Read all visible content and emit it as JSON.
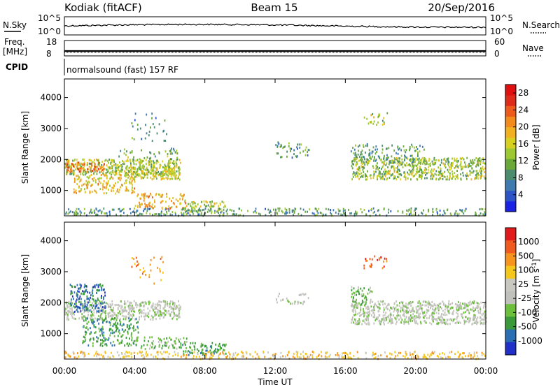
{
  "header": {
    "station": "Kodiak (fitACF)",
    "beam": "Beam 15",
    "date": "20/Sep/2016"
  },
  "strip_labels": {
    "nsky": "N.Sky",
    "nsky_ticks": [
      "10^5",
      "10^0"
    ],
    "nsearch": "N.Search",
    "nsearch_ticks": [
      "10^5",
      "10^0"
    ],
    "freq_line1": "Freq.",
    "freq_line2": "[MHz]",
    "freq_ticks": [
      "18",
      "8"
    ],
    "nave": "Nave",
    "nave_ticks": [
      "60",
      "0"
    ],
    "cpid": "CPID",
    "cpid_text": "normalsound (fast) 157 RF"
  },
  "x_axis": {
    "label": "Time UT",
    "ticks": [
      "00:00",
      "04:00",
      "08:00",
      "12:00",
      "16:00",
      "20:00",
      "00:00"
    ],
    "range_hours": [
      0,
      24
    ]
  },
  "colors": {
    "power": [
      "#1a22e6",
      "#2d55c8",
      "#3f7ab0",
      "#4b8c6e",
      "#6aa83a",
      "#9cc832",
      "#d8d020",
      "#f0b020",
      "#f28a1c",
      "#ee5a1c",
      "#e02a1a",
      "#e01010"
    ],
    "velocity": [
      "#e31a1c",
      "#f05a1e",
      "#f7941d",
      "#f6c71b",
      "#c8c8c0",
      "#c0c0bc",
      "#6cbf3a",
      "#3a9a3a",
      "#2a6fb4",
      "#2030c8"
    ]
  },
  "chart_data": [
    {
      "type": "heatmap",
      "name": "power-panel",
      "ylabel": "Slant Range [km]",
      "yticks": [
        "1000",
        "2000",
        "3000",
        "4000"
      ],
      "ylim": [
        180,
        4600
      ],
      "xlim_hours": [
        0,
        24
      ],
      "colorbar": {
        "label": "Power [dB]",
        "ticks": [
          "4",
          "8",
          "12",
          "16",
          "20",
          "24",
          "28"
        ],
        "range": [
          0,
          30
        ]
      },
      "scatter_regions": [
        {
          "t0": 0.0,
          "t1": 6.6,
          "r0": 1500,
          "r1": 2000,
          "level": 14,
          "density": 0.85
        },
        {
          "t0": 0.1,
          "t1": 2.3,
          "r0": 1600,
          "r1": 1900,
          "level": 22,
          "density": 0.8
        },
        {
          "t0": 0.5,
          "t1": 4.0,
          "r0": 900,
          "r1": 1500,
          "level": 18,
          "density": 0.55
        },
        {
          "t0": 3.5,
          "t1": 6.6,
          "r0": 1350,
          "r1": 1750,
          "level": 15,
          "density": 0.85
        },
        {
          "t0": 3.0,
          "t1": 6.5,
          "r0": 2000,
          "r1": 2350,
          "level": 10,
          "density": 0.25
        },
        {
          "t0": 3.8,
          "t1": 5.8,
          "r0": 2600,
          "r1": 3500,
          "level": 8,
          "density": 0.12
        },
        {
          "t0": 4.0,
          "t1": 7.0,
          "r0": 400,
          "r1": 900,
          "level": 20,
          "density": 0.45
        },
        {
          "t0": 6.5,
          "t1": 9.2,
          "r0": 250,
          "r1": 650,
          "level": 14,
          "density": 0.5
        },
        {
          "t0": 0.0,
          "t1": 24.0,
          "r0": 180,
          "r1": 420,
          "level": 9,
          "density": 0.45
        },
        {
          "t0": 12.0,
          "t1": 14.0,
          "r0": 2050,
          "r1": 2550,
          "level": 8,
          "density": 0.3
        },
        {
          "t0": 16.3,
          "t1": 24.0,
          "r0": 1350,
          "r1": 2050,
          "level": 13,
          "density": 0.8
        },
        {
          "t0": 16.3,
          "t1": 20.5,
          "r0": 1900,
          "r1": 2500,
          "level": 10,
          "density": 0.35
        },
        {
          "t0": 17.0,
          "t1": 18.4,
          "r0": 3100,
          "r1": 3500,
          "level": 14,
          "density": 0.3
        }
      ]
    },
    {
      "type": "heatmap",
      "name": "velocity-panel",
      "ylabel": "Slant Range [km]",
      "yticks": [
        "1000",
        "2000",
        "3000",
        "4000"
      ],
      "ylim": [
        180,
        4600
      ],
      "xlim_hours": [
        0,
        24
      ],
      "colorbar": {
        "label": "Velocity [m s^-1]",
        "ticks": [
          "1000",
          "500",
          "100",
          "25",
          "-25",
          "-100",
          "-500",
          "-1000"
        ]
      },
      "scatter_regions": [
        {
          "t0": 0.0,
          "t1": 6.6,
          "r0": 1450,
          "r1": 2050,
          "level": 5,
          "density": 0.85
        },
        {
          "t0": 0.3,
          "t1": 2.3,
          "r0": 1700,
          "r1": 2600,
          "level": 8,
          "density": 0.6
        },
        {
          "t0": 1.0,
          "t1": 4.2,
          "r0": 600,
          "r1": 1500,
          "level": 7,
          "density": 0.5
        },
        {
          "t0": 4.0,
          "t1": 7.0,
          "r0": 500,
          "r1": 900,
          "level": 6,
          "density": 0.45
        },
        {
          "t0": 6.5,
          "t1": 9.2,
          "r0": 300,
          "r1": 700,
          "level": 7,
          "density": 0.55
        },
        {
          "t0": 0.0,
          "t1": 24.0,
          "r0": 180,
          "r1": 420,
          "level": 3,
          "density": 0.45
        },
        {
          "t0": 12.0,
          "t1": 14.0,
          "r0": 1950,
          "r1": 2300,
          "level": 5,
          "density": 0.3
        },
        {
          "t0": 16.3,
          "t1": 24.0,
          "r0": 1300,
          "r1": 2050,
          "level": 5,
          "density": 0.85
        },
        {
          "t0": 16.3,
          "t1": 17.5,
          "r0": 1900,
          "r1": 2500,
          "level": 6,
          "density": 0.5
        },
        {
          "t0": 17.0,
          "t1": 18.4,
          "r0": 3100,
          "r1": 3500,
          "level": 1,
          "density": 0.3
        },
        {
          "t0": 3.8,
          "t1": 5.8,
          "r0": 2600,
          "r1": 3500,
          "level": 2,
          "density": 0.12
        }
      ]
    }
  ]
}
